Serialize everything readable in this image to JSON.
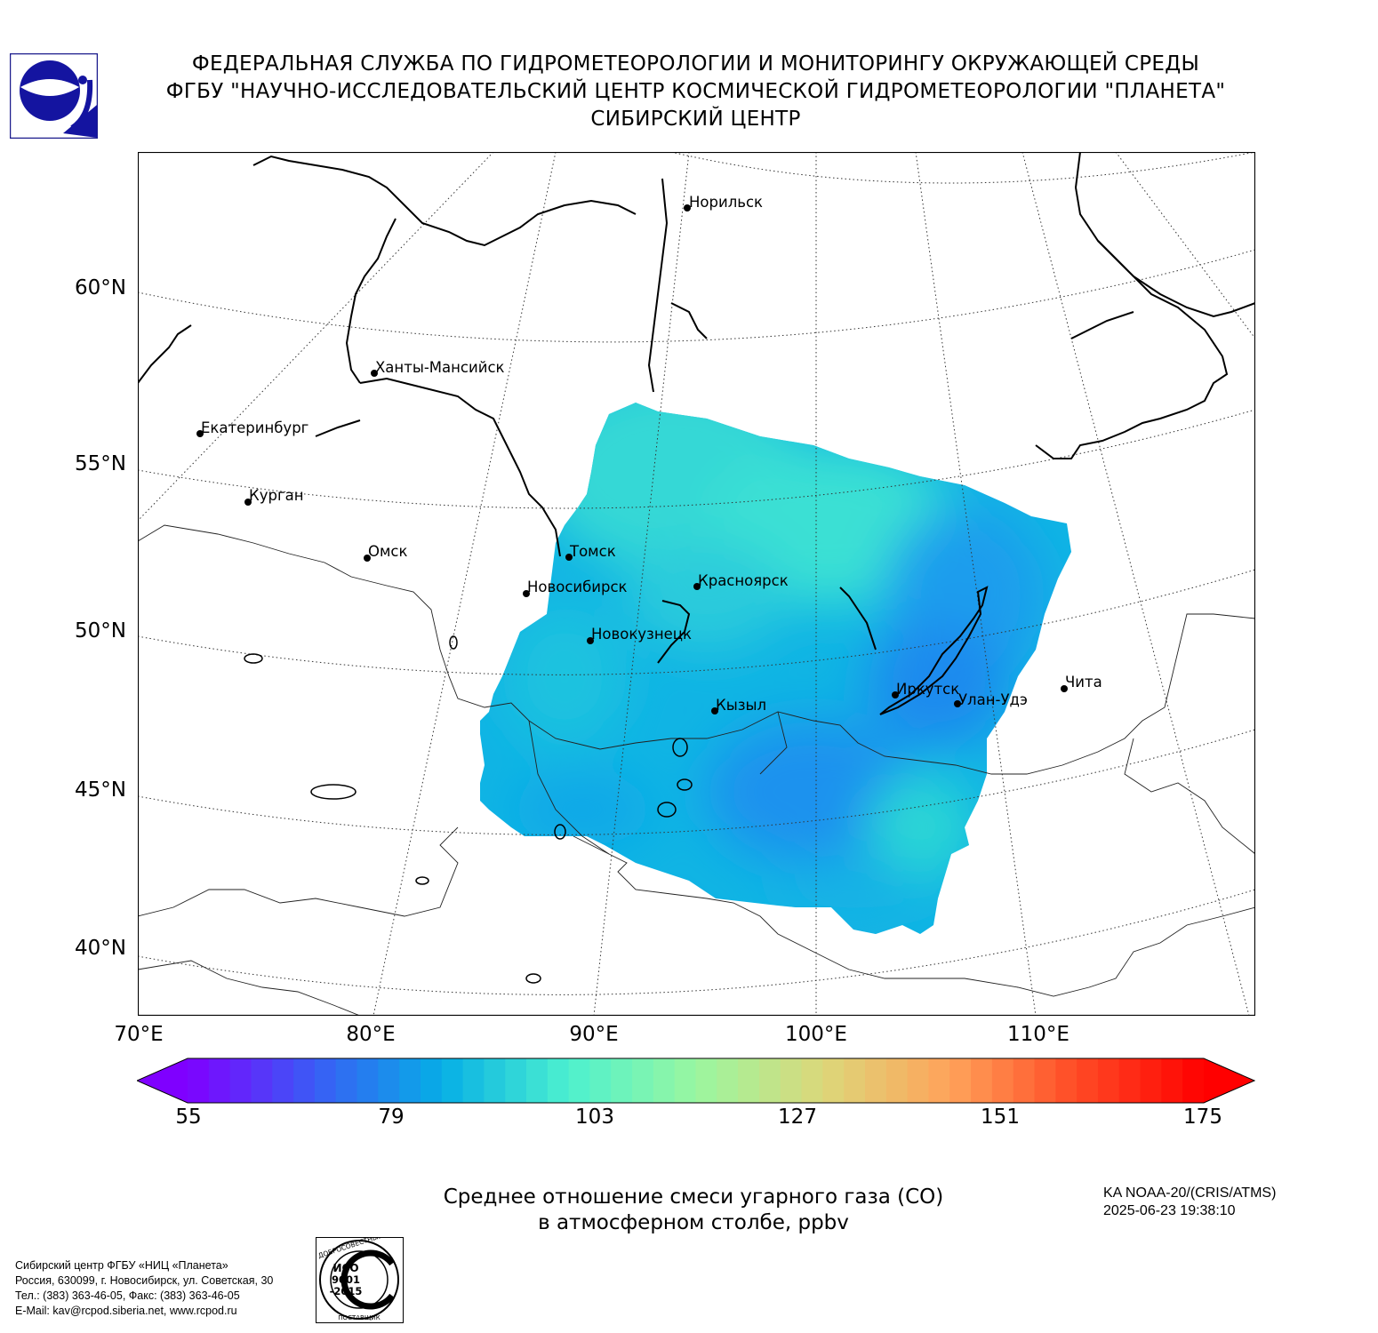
{
  "header": {
    "line1": "ФЕДЕРАЛЬНАЯ СЛУЖБА ПО ГИДРОМЕТЕОРОЛОГИИ И МОНИТОРИНГУ ОКРУЖАЮЩЕЙ СРЕДЫ",
    "line2": "ФГБУ \"НАУЧНО-ИССЛЕДОВАТЕЛЬСКИЙ ЦЕНТР КОСМИЧЕСКОЙ ГИДРОМЕТЕОРОЛОГИИ \"ПЛАНЕТА\"",
    "line3": "СИБИРСКИЙ ЦЕНТР"
  },
  "map": {
    "lat_labels": [
      "60°N",
      "55°N",
      "50°N",
      "45°N",
      "40°N"
    ],
    "lon_labels": [
      "70°E",
      "80°E",
      "90°E",
      "100°E",
      "110°E"
    ],
    "cities": [
      {
        "name": "Норильск"
      },
      {
        "name": "Ханты-Мансийск"
      },
      {
        "name": "Екатеринбург"
      },
      {
        "name": "Курган"
      },
      {
        "name": "Омск"
      },
      {
        "name": "Томск"
      },
      {
        "name": "Новосибирск"
      },
      {
        "name": "Красноярск"
      },
      {
        "name": "Новокузнецк"
      },
      {
        "name": "Кызыл"
      },
      {
        "name": "Иркутск"
      },
      {
        "name": "Улан-Удэ"
      },
      {
        "name": "Чита"
      }
    ]
  },
  "colorbar": {
    "min": 55,
    "max": 175,
    "ticks": [
      "55",
      "79",
      "103",
      "127",
      "151",
      "175"
    ],
    "colors": [
      "#7f00ff",
      "#3a5cf5",
      "#06aee6",
      "#4df0cf",
      "#99f7a0",
      "#dcd77a",
      "#ffa35a",
      "#ff4a25",
      "#ff0000"
    ]
  },
  "caption": {
    "line1": "Среднее отношение смеси угарного газа (CO)",
    "line2": "в атмосферном столбе, ppbv"
  },
  "satellite": {
    "name": "KA NOAA-20/(CRIS/ATMS)",
    "datetime": "2025-06-23 19:38:10"
  },
  "footer": {
    "line1": "Сибирский центр ФГБУ «НИЦ «Планета»",
    "line2": "Россия, 630099, г. Новосибирск, ул. Советская, 30",
    "line3": "Тел.: (383) 363-46-05, Факс: (383) 363-46-05",
    "line4": "E-Mail: kav@rcpod.siberia.net, www.rcpod.ru"
  },
  "iso_stamp": {
    "top_text": "ДОБРОСОВЕСТНЫЙ",
    "mid1": "ИСО",
    "mid2": "9001",
    "mid3": "-2015",
    "bottom_text": "ПОСТАВЩИК"
  },
  "icons": [
    "planeta-logo-icon",
    "iso-stamp-icon"
  ]
}
